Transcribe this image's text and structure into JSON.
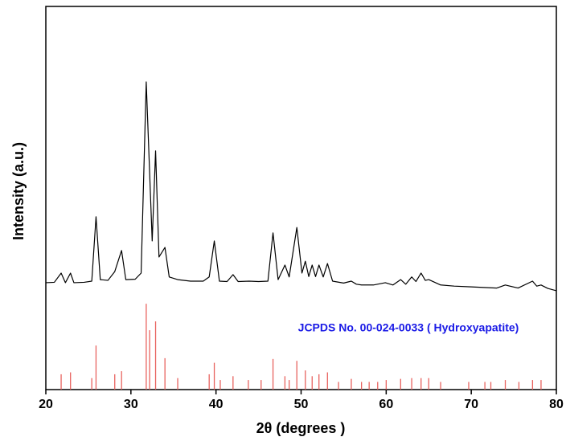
{
  "chart_data": {
    "type": "line",
    "x_label": "2θ (degrees )",
    "y_label": "Intensity (a.u.)",
    "annotation": "JCPDS No. 00-024-0033 ( Hydroxyapatite)",
    "annotation_color": "#1a1ae6",
    "xlim": [
      20,
      80
    ],
    "ylim": [
      0,
      100
    ],
    "xticks": [
      20,
      30,
      40,
      50,
      60,
      70,
      80
    ],
    "series": [
      {
        "type": "line",
        "color": "#000000",
        "x": [
          20,
          21.0,
          21.8,
          22.3,
          22.9,
          23.3,
          24.5,
          25.4,
          25.9,
          26.4,
          27.3,
          28.1,
          28.9,
          29.4,
          30.5,
          31.2,
          31.8,
          32.2,
          32.5,
          32.9,
          33.3,
          34.0,
          34.5,
          35.5,
          37.0,
          38.5,
          39.2,
          39.8,
          40.4,
          41.3,
          42.0,
          42.6,
          43.9,
          45.0,
          46.1,
          46.7,
          47.3,
          48.1,
          48.6,
          49.5,
          50.1,
          50.5,
          50.9,
          51.3,
          51.7,
          52.1,
          52.6,
          53.1,
          53.7,
          55.0,
          55.9,
          56.5,
          57.1,
          58.5,
          59.9,
          60.8,
          61.7,
          62.3,
          63.0,
          63.5,
          64.1,
          64.6,
          65.0,
          66.4,
          68.0,
          70.0,
          72.0,
          73.0,
          74.0,
          75.5,
          77.2,
          77.7,
          78.2,
          79.0,
          80
        ],
        "values": [
          27.9,
          28,
          30.4,
          27.9,
          30.4,
          27.9,
          28,
          28.3,
          45.1,
          28.7,
          28.5,
          30.8,
          36.3,
          28.7,
          28.8,
          30.4,
          80.3,
          56.6,
          38.8,
          62.3,
          34.6,
          37.1,
          29.4,
          28.7,
          28.3,
          28.3,
          29.4,
          38.8,
          28.3,
          28.2,
          30,
          28.2,
          28.3,
          28.2,
          28.3,
          40.9,
          28.7,
          32.5,
          29.4,
          42.3,
          30.4,
          33.5,
          29.5,
          32.5,
          29.5,
          32.5,
          29.4,
          32.9,
          28.3,
          27.8,
          28.3,
          27.5,
          27.3,
          27.3,
          27.9,
          27.3,
          28.7,
          27.5,
          29.4,
          28.2,
          30.4,
          28.5,
          28.7,
          27.3,
          27,
          26.8,
          26.6,
          26.5,
          27.3,
          26.5,
          28.3,
          27,
          27.3,
          26.4,
          25.8
        ]
      },
      {
        "type": "stick",
        "color": "#e8635f",
        "x": [
          21.8,
          22.9,
          25.4,
          25.9,
          28.1,
          28.9,
          31.8,
          32.2,
          32.9,
          34.0,
          35.5,
          39.2,
          39.8,
          40.5,
          42.0,
          43.8,
          45.3,
          46.7,
          48.1,
          48.6,
          49.5,
          50.5,
          51.3,
          52.1,
          53.1,
          54.4,
          55.9,
          57.1,
          58.0,
          59.0,
          60.0,
          61.7,
          63.0,
          64.1,
          65.0,
          66.4,
          69.7,
          71.6,
          72.3,
          74.0,
          75.6,
          77.2,
          78.2
        ],
        "values": [
          4,
          4.5,
          3,
          11.5,
          4,
          4.8,
          22.4,
          15.5,
          17.8,
          8.2,
          3,
          4,
          7,
          2.5,
          3.5,
          2.5,
          2.5,
          8,
          3.5,
          2.5,
          7.5,
          5,
          3.5,
          4,
          4.5,
          2,
          2.8,
          2,
          2,
          2,
          2.5,
          2.8,
          3,
          3,
          3,
          2,
          2,
          2,
          2,
          2.5,
          2,
          2.5,
          2.5
        ]
      }
    ]
  }
}
